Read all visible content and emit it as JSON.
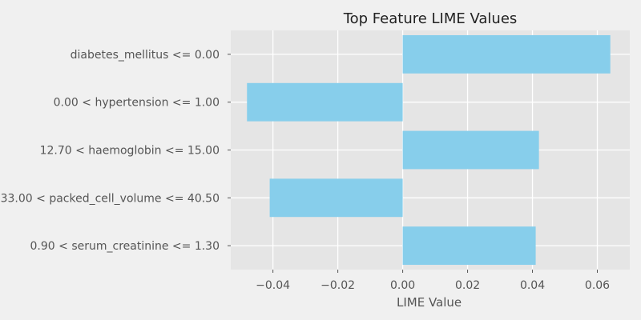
{
  "chart_data": {
    "type": "bar",
    "orientation": "horizontal",
    "title": "Top Feature LIME Values",
    "xlabel": "LIME Value",
    "ylabel": "",
    "categories": [
      "diabetes_mellitus <= 0.00",
      "0.00 < hypertension <= 1.00",
      "12.70 < haemoglobin <= 15.00",
      "33.00 < packed_cell_volume <= 40.50",
      "0.90 < serum_creatinine <= 1.30"
    ],
    "values": [
      0.064,
      -0.048,
      0.042,
      -0.041,
      0.041
    ],
    "xlim": [
      -0.053,
      0.07
    ],
    "xticks": [
      -0.04,
      -0.02,
      0.0,
      0.02,
      0.04,
      0.06
    ],
    "xtick_labels": [
      "−0.04",
      "−0.02",
      "0.00",
      "0.02",
      "0.04",
      "0.06"
    ],
    "bar_color": "#87ceeb",
    "plot_background": "#e5e5e5",
    "figure_background": "#f0f0f0",
    "grid": true,
    "legend": "none"
  }
}
